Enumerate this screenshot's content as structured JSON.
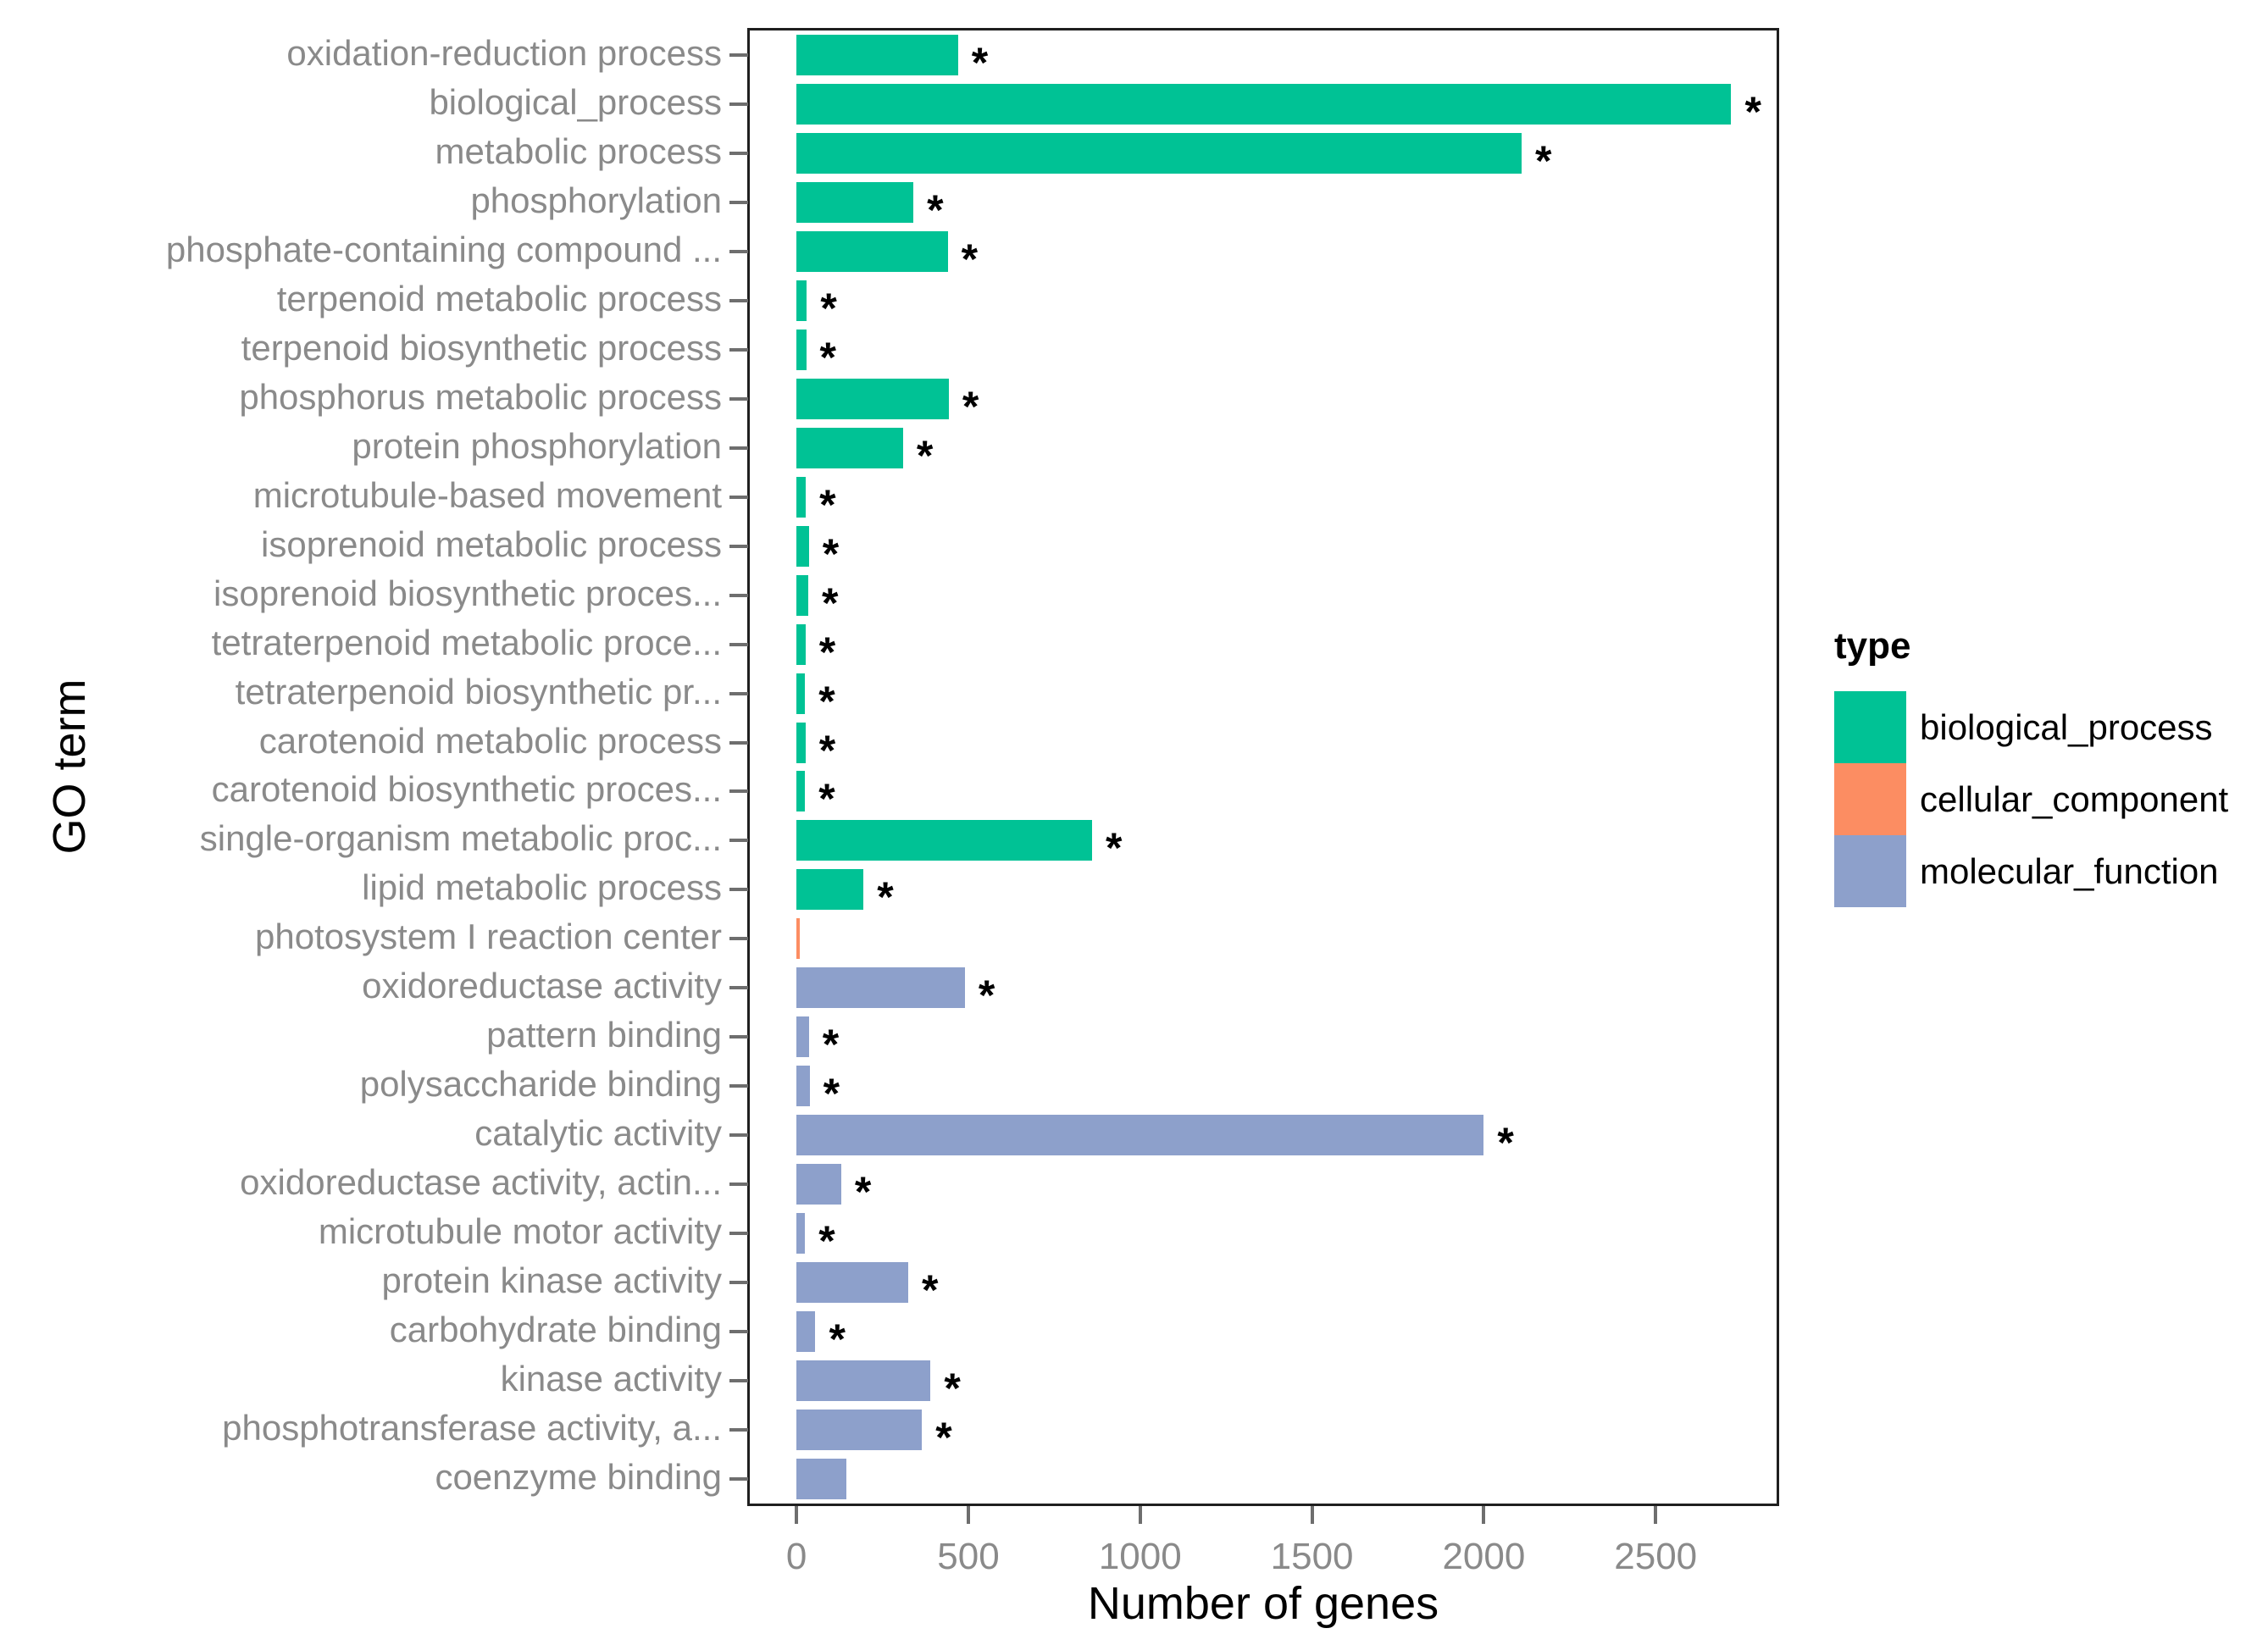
{
  "chart_data": {
    "type": "bar",
    "orientation": "horizontal",
    "title": "",
    "xlabel": "Number of genes",
    "ylabel": "GO term",
    "x_ticks": [
      0,
      500,
      1000,
      1500,
      2000,
      2500
    ],
    "xlim": [
      -136,
      2852
    ],
    "grid": false,
    "significance_marker": "*",
    "legend": {
      "title": "type",
      "position": "right",
      "items": [
        {
          "label": "biological_process",
          "color": "#00C295"
        },
        {
          "label": "cellular_component",
          "color": "#FC8D62"
        },
        {
          "label": "molecular_function",
          "color": "#8DA0CB"
        }
      ]
    },
    "bars": [
      {
        "label": "oxidation-reduction process",
        "value": 470,
        "type": "biological_process",
        "significant": true
      },
      {
        "label": "biological_process",
        "value": 2720,
        "type": "biological_process",
        "significant": true
      },
      {
        "label": "metabolic process",
        "value": 2110,
        "type": "biological_process",
        "significant": true
      },
      {
        "label": "phosphorylation",
        "value": 340,
        "type": "biological_process",
        "significant": true
      },
      {
        "label": "phosphate-containing compound ...",
        "value": 440,
        "type": "biological_process",
        "significant": true
      },
      {
        "label": "terpenoid metabolic process",
        "value": 30,
        "type": "biological_process",
        "significant": true
      },
      {
        "label": "terpenoid biosynthetic process",
        "value": 28,
        "type": "biological_process",
        "significant": true
      },
      {
        "label": "phosphorus metabolic process",
        "value": 443,
        "type": "biological_process",
        "significant": true
      },
      {
        "label": "protein phosphorylation",
        "value": 310,
        "type": "biological_process",
        "significant": true
      },
      {
        "label": "microtubule-based movement",
        "value": 27,
        "type": "biological_process",
        "significant": true
      },
      {
        "label": "isoprenoid metabolic process",
        "value": 36,
        "type": "biological_process",
        "significant": true
      },
      {
        "label": "isoprenoid biosynthetic proces...",
        "value": 34,
        "type": "biological_process",
        "significant": true
      },
      {
        "label": "tetraterpenoid metabolic proce...",
        "value": 26,
        "type": "biological_process",
        "significant": true
      },
      {
        "label": "tetraterpenoid biosynthetic pr...",
        "value": 25,
        "type": "biological_process",
        "significant": true
      },
      {
        "label": "carotenoid metabolic process",
        "value": 26,
        "type": "biological_process",
        "significant": true
      },
      {
        "label": "carotenoid biosynthetic proces...",
        "value": 25,
        "type": "biological_process",
        "significant": true
      },
      {
        "label": "single-organism metabolic proc...",
        "value": 860,
        "type": "biological_process",
        "significant": true
      },
      {
        "label": "lipid metabolic process",
        "value": 195,
        "type": "biological_process",
        "significant": true
      },
      {
        "label": "photosystem I reaction center",
        "value": 10,
        "type": "cellular_component",
        "significant": false
      },
      {
        "label": "oxidoreductase activity",
        "value": 490,
        "type": "molecular_function",
        "significant": true
      },
      {
        "label": "pattern binding",
        "value": 36,
        "type": "molecular_function",
        "significant": true
      },
      {
        "label": "polysaccharide binding",
        "value": 38,
        "type": "molecular_function",
        "significant": true
      },
      {
        "label": "catalytic activity",
        "value": 2000,
        "type": "molecular_function",
        "significant": true
      },
      {
        "label": "oxidoreductase activity, actin...",
        "value": 130,
        "type": "molecular_function",
        "significant": true
      },
      {
        "label": "microtubule motor activity",
        "value": 25,
        "type": "molecular_function",
        "significant": true
      },
      {
        "label": "protein kinase activity",
        "value": 325,
        "type": "molecular_function",
        "significant": true
      },
      {
        "label": "carbohydrate binding",
        "value": 55,
        "type": "molecular_function",
        "significant": true
      },
      {
        "label": "kinase activity",
        "value": 390,
        "type": "molecular_function",
        "significant": true
      },
      {
        "label": "phosphotransferase activity, a...",
        "value": 365,
        "type": "molecular_function",
        "significant": true
      },
      {
        "label": "coenzyme binding",
        "value": 145,
        "type": "molecular_function",
        "significant": false
      }
    ]
  }
}
